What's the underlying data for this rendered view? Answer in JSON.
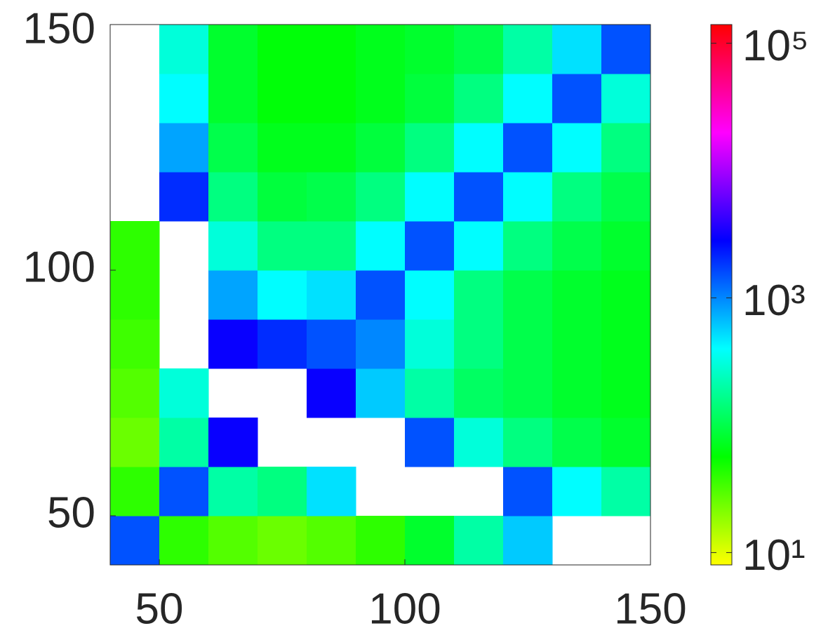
{
  "chart_data": {
    "type": "heatmap",
    "x": [
      45,
      55,
      65,
      75,
      85,
      95,
      105,
      115,
      125,
      135,
      145
    ],
    "y": [
      45,
      55,
      65,
      75,
      85,
      95,
      105,
      115,
      125,
      135,
      145
    ],
    "values": [
      [
        1500,
        40,
        30,
        25,
        30,
        40,
        80,
        200,
        600,
        null,
        null
      ],
      [
        40,
        1500,
        200,
        150,
        500,
        null,
        null,
        null,
        1500,
        400,
        200
      ],
      [
        25,
        200,
        3000,
        null,
        null,
        null,
        1500,
        300,
        150,
        100,
        80
      ],
      [
        30,
        300,
        null,
        null,
        3000,
        600,
        200,
        120,
        100,
        80,
        70
      ],
      [
        35,
        null,
        3000,
        2000,
        1500,
        1000,
        300,
        150,
        100,
        80,
        70
      ],
      [
        40,
        null,
        800,
        400,
        500,
        1500,
        400,
        150,
        100,
        80,
        70
      ],
      [
        40,
        null,
        300,
        150,
        150,
        400,
        1500,
        400,
        150,
        100,
        80
      ],
      [
        null,
        2000,
        150,
        90,
        100,
        150,
        400,
        1500,
        400,
        150,
        100
      ],
      [
        null,
        800,
        100,
        70,
        70,
        90,
        150,
        400,
        1500,
        400,
        150
      ],
      [
        null,
        400,
        80,
        60,
        60,
        70,
        90,
        150,
        400,
        1500,
        300
      ],
      [
        null,
        300,
        80,
        60,
        60,
        70,
        80,
        100,
        200,
        500,
        1500
      ]
    ],
    "xlim": [
      40,
      150
    ],
    "ylim": [
      40,
      150
    ],
    "xticks": [
      50,
      100,
      150
    ],
    "yticks": [
      50,
      100,
      150
    ],
    "colormap": [
      "#ffff00",
      "#00ff00",
      "#00ffff",
      "#0000ff",
      "#ff00ff",
      "#ff0000"
    ],
    "clim": [
      8,
      140000
    ],
    "color_log_scale": true,
    "cticks": [
      {
        "value": 10,
        "label": "10¹"
      },
      {
        "value": 1000,
        "label": "10³"
      },
      {
        "value": 100000,
        "label": "10⁵"
      }
    ]
  }
}
